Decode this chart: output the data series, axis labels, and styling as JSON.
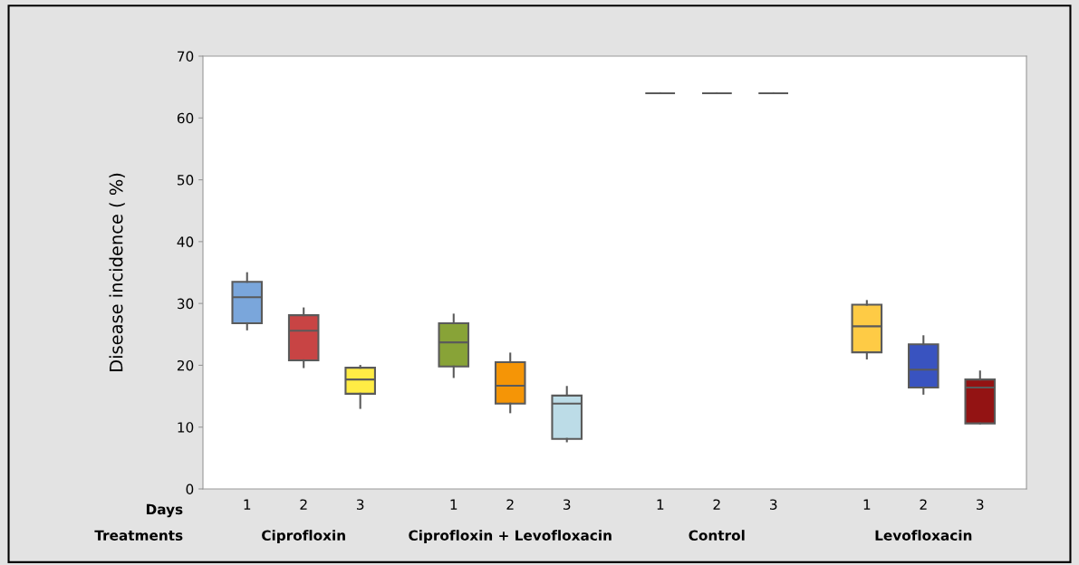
{
  "chart_data": {
    "type": "box",
    "ylabel": "Disease incidence ( %)",
    "categories": [
      "1",
      "2",
      "3",
      "1",
      "2",
      "3",
      "1",
      "2",
      "3",
      "1",
      "2",
      "3"
    ],
    "annotations": [
      "Days",
      "Treatments",
      "Ciprofloxin",
      "Ciprofloxin + Levofloxacin",
      "Control",
      "Levofloxacin"
    ],
    "boxes": [
      {
        "low": 25.8,
        "q1": 26.8,
        "median": 31.0,
        "q3": 33.5,
        "high": 34.9
      },
      {
        "low": 19.7,
        "q1": 20.8,
        "median": 25.6,
        "q3": 28.1,
        "high": 29.2
      },
      {
        "low": 13.1,
        "q1": 15.4,
        "median": 17.7,
        "q3": 19.6,
        "high": 19.9
      },
      {
        "low": 18.1,
        "q1": 19.8,
        "median": 23.7,
        "q3": 26.8,
        "high": 28.2
      },
      {
        "low": 12.4,
        "q1": 13.8,
        "median": 16.7,
        "q3": 20.5,
        "high": 21.9
      },
      {
        "low": 7.7,
        "q1": 8.1,
        "median": 13.8,
        "q3": 15.1,
        "high": 16.5
      },
      {
        "low": 64,
        "q1": 64,
        "median": 64,
        "q3": 64,
        "high": 64
      },
      {
        "low": 64,
        "q1": 64,
        "median": 64,
        "q3": 64,
        "high": 64
      },
      {
        "low": 64,
        "q1": 64,
        "median": 64,
        "q3": 64,
        "high": 64
      },
      {
        "low": 21.1,
        "q1": 22.1,
        "median": 26.3,
        "q3": 29.8,
        "high": 30.4
      },
      {
        "low": 15.4,
        "q1": 16.4,
        "median": 19.3,
        "q3": 23.4,
        "high": 24.7
      },
      {
        "low": 10.6,
        "q1": 10.6,
        "median": 16.4,
        "q3": 17.7,
        "high": 19.0
      }
    ],
    "colors": [
      "#7aa6db",
      "#c84444",
      "#ffec45",
      "#88a337",
      "#f59506",
      "#bcdce7",
      "#5a5a5a",
      "#5a5a5a",
      "#5a5a5a",
      "#fecb45",
      "#3953c0",
      "#931313"
    ],
    "ylim": [
      0,
      70
    ],
    "yticks": [
      0,
      10,
      20,
      30,
      40,
      50,
      60,
      70
    ],
    "grid": false
  }
}
